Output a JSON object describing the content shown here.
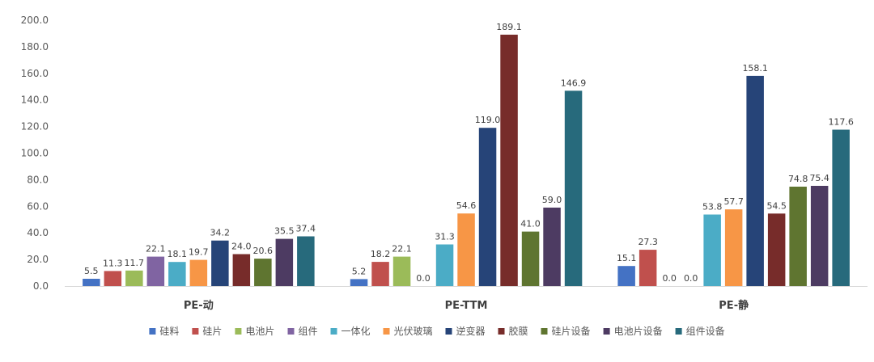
{
  "chart_data": {
    "type": "bar",
    "title": "",
    "xlabel": "",
    "ylabel": "",
    "ylim": [
      0,
      200
    ],
    "ytick_step": 20,
    "ytick_labels": [
      "0.0",
      "20.0",
      "40.0",
      "60.0",
      "80.0",
      "100.0",
      "120.0",
      "140.0",
      "160.0",
      "180.0",
      "200.0"
    ],
    "grid": false,
    "legend_position": "bottom",
    "categories": [
      "PE-动",
      "PE-TTM",
      "PE-静"
    ],
    "series": [
      {
        "name": "硅料",
        "color": "#4472C4",
        "values": [
          5.5,
          5.2,
          15.1
        ],
        "labels": [
          "5.5",
          "5.2",
          "15.1"
        ]
      },
      {
        "name": "硅片",
        "color": "#C0504D",
        "values": [
          11.3,
          18.2,
          27.3
        ],
        "labels": [
          "11.3",
          "18.2",
          "27.3"
        ]
      },
      {
        "name": "电池片",
        "color": "#9BBB59",
        "values": [
          11.7,
          22.1,
          0.0
        ],
        "labels": [
          "11.7",
          "22.1",
          "0.0"
        ]
      },
      {
        "name": "组件",
        "color": "#8064A2",
        "values": [
          22.1,
          0.0,
          0.0
        ],
        "labels": [
          "22.1",
          "0.0",
          "0.0"
        ]
      },
      {
        "name": "一体化",
        "color": "#4BACC6",
        "values": [
          18.1,
          31.3,
          53.8
        ],
        "labels": [
          "18.1",
          "31.3",
          "53.8"
        ]
      },
      {
        "name": "光伏玻璃",
        "color": "#F79646",
        "values": [
          19.7,
          54.6,
          57.7
        ],
        "labels": [
          "19.7",
          "54.6",
          "57.7"
        ]
      },
      {
        "name": "逆变器",
        "color": "#264478",
        "values": [
          34.2,
          119.0,
          158.1
        ],
        "labels": [
          "34.2",
          "119.0",
          "158.1"
        ]
      },
      {
        "name": "胶膜",
        "color": "#772C2A",
        "values": [
          24.0,
          189.1,
          54.5
        ],
        "labels": [
          "24.0",
          "189.1",
          "54.5"
        ]
      },
      {
        "name": "硅片设备",
        "color": "#5F7530",
        "values": [
          20.6,
          41.0,
          74.8
        ],
        "labels": [
          "20.6",
          "41.0",
          "74.8"
        ]
      },
      {
        "name": "电池片设备",
        "color": "#4D3B62",
        "values": [
          35.5,
          59.0,
          75.4
        ],
        "labels": [
          "35.5",
          "59.0",
          "75.4"
        ]
      },
      {
        "name": "组件设备",
        "color": "#276A7C",
        "values": [
          37.4,
          146.9,
          117.6
        ],
        "labels": [
          "37.4",
          "146.9",
          "117.6"
        ]
      }
    ]
  }
}
